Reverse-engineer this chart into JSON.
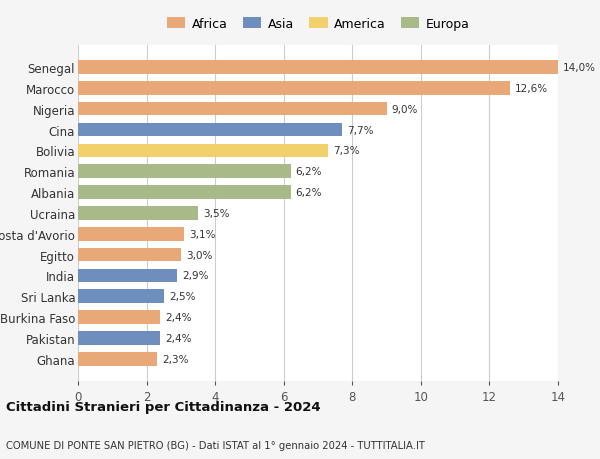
{
  "categories": [
    "Senegal",
    "Marocco",
    "Nigeria",
    "Cina",
    "Bolivia",
    "Romania",
    "Albania",
    "Ucraina",
    "Costa d'Avorio",
    "Egitto",
    "India",
    "Sri Lanka",
    "Burkina Faso",
    "Pakistan",
    "Ghana"
  ],
  "values": [
    14.0,
    12.6,
    9.0,
    7.7,
    7.3,
    6.2,
    6.2,
    3.5,
    3.1,
    3.0,
    2.9,
    2.5,
    2.4,
    2.4,
    2.3
  ],
  "labels": [
    "14,0%",
    "12,6%",
    "9,0%",
    "7,7%",
    "7,3%",
    "6,2%",
    "6,2%",
    "3,5%",
    "3,1%",
    "3,0%",
    "2,9%",
    "2,5%",
    "2,4%",
    "2,4%",
    "2,3%"
  ],
  "continents": [
    "Africa",
    "Africa",
    "Africa",
    "Asia",
    "America",
    "Europa",
    "Europa",
    "Europa",
    "Africa",
    "Africa",
    "Asia",
    "Asia",
    "Africa",
    "Asia",
    "Africa"
  ],
  "colors": {
    "Africa": "#E8A878",
    "Asia": "#6E8EBD",
    "America": "#F2D06B",
    "Europa": "#A8BA88"
  },
  "legend_order": [
    "Africa",
    "Asia",
    "America",
    "Europa"
  ],
  "title1": "Cittadini Stranieri per Cittadinanza - 2024",
  "title2": "COMUNE DI PONTE SAN PIETRO (BG) - Dati ISTAT al 1° gennaio 2024 - TUTTITALIA.IT",
  "xlim": [
    0,
    14
  ],
  "xticks": [
    0,
    2,
    4,
    6,
    8,
    10,
    12,
    14
  ],
  "background_color": "#F5F5F5",
  "bar_background": "#FFFFFF"
}
